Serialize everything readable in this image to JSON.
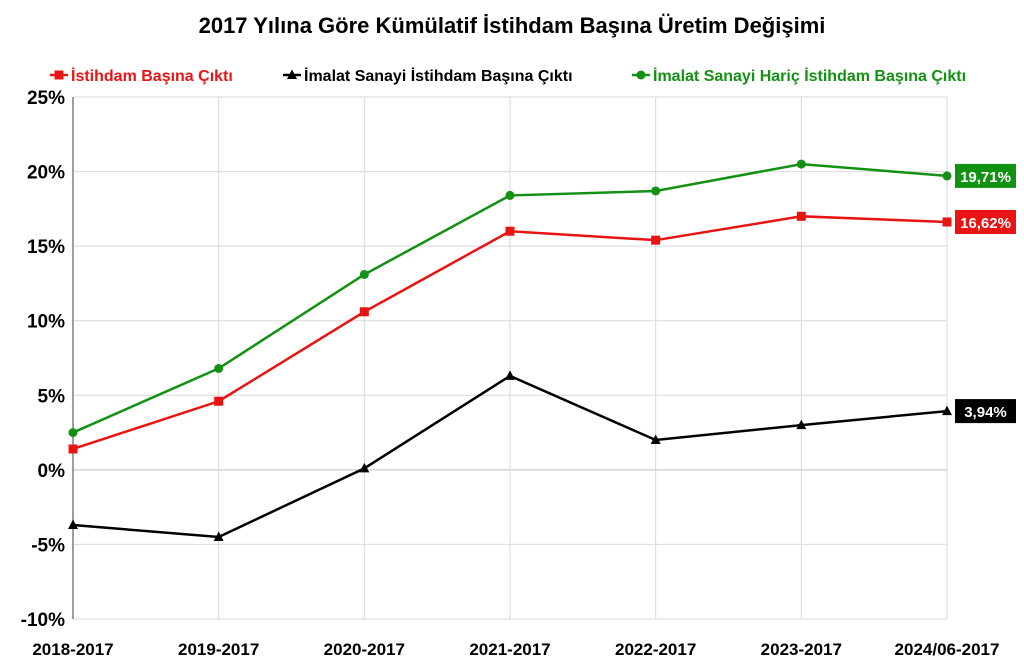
{
  "chart_data": {
    "type": "line",
    "title": "2017 Yılına Göre Kümülatif İstihdam Başına Üretim Değişimi",
    "xlabel": "",
    "ylabel": "",
    "categories": [
      "2018-2017",
      "2019-2017",
      "2020-2017",
      "2021-2017",
      "2022-2017",
      "2023-2017",
      "2024/06-2017"
    ],
    "ylim": [
      -10,
      25
    ],
    "yticks": [
      -10,
      -5,
      0,
      5,
      10,
      15,
      20,
      25
    ],
    "ytick_labels": [
      "-10%",
      "-5%",
      "0%",
      "5%",
      "10%",
      "15%",
      "20%",
      "25%"
    ],
    "grid": true,
    "legend_position": "top",
    "series": [
      {
        "name": "İstihdam Başına Çıktı",
        "color": "#e81414",
        "marker": "square",
        "values": [
          1.4,
          4.6,
          10.6,
          16.0,
          15.4,
          17.0,
          16.62
        ],
        "end_label": "16,62%"
      },
      {
        "name": "İmalat Sanayi İstihdam Başına Çıktı",
        "color": "#000000",
        "marker": "triangle",
        "values": [
          -3.7,
          -4.5,
          0.1,
          6.3,
          2.0,
          3.0,
          3.94
        ],
        "end_label": "3,94%"
      },
      {
        "name": "İmalat Sanayi Hariç İstihdam Başına Çıktı",
        "color": "#139113",
        "marker": "circle",
        "values": [
          2.5,
          6.8,
          13.1,
          18.4,
          18.7,
          20.5,
          19.71
        ],
        "end_label": "19,71%"
      }
    ]
  }
}
